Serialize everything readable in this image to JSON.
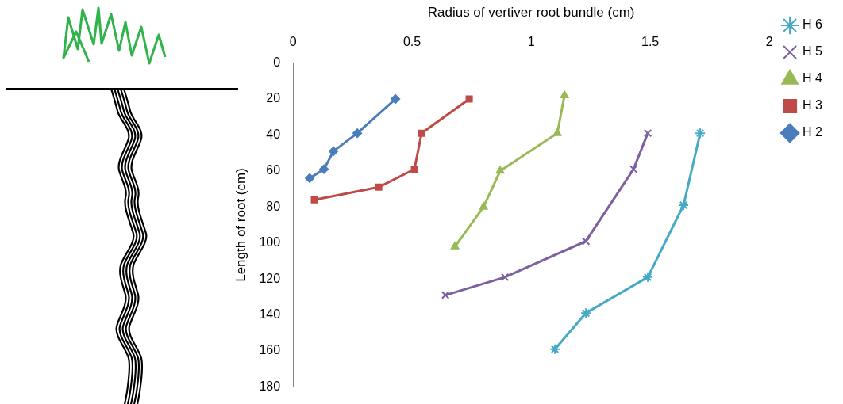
{
  "chart_data": {
    "type": "line",
    "x_label": "Radius of vertiver root bundle (cm)",
    "y_label": "Length of root (cm)",
    "xlim": [
      0,
      2
    ],
    "xticks": [
      0,
      0.5,
      1,
      1.5,
      2
    ],
    "ylim": [
      0,
      180
    ],
    "yticks": [
      0,
      20,
      40,
      60,
      80,
      100,
      120,
      140,
      160,
      180
    ],
    "log": false,
    "grid": false,
    "legend": "right",
    "series": [
      {
        "name": "H 6",
        "color": "#46aac5",
        "marker": "star",
        "line_style": "solid",
        "x": [
          1.71,
          1.64,
          1.49,
          1.23,
          1.1
        ],
        "values": [
          39,
          79,
          119,
          139,
          159
        ]
      },
      {
        "name": "H 5",
        "color": "#7d60a0",
        "marker": "x",
        "line_style": "solid",
        "x": [
          1.49,
          1.43,
          1.23,
          0.89,
          0.64
        ],
        "values": [
          39,
          59,
          99,
          119,
          129
        ]
      },
      {
        "name": "H 4",
        "color": "#98b954",
        "marker": "triangle",
        "line_style": "solid",
        "x": [
          1.14,
          1.11,
          0.87,
          0.8,
          0.68
        ],
        "values": [
          18,
          39,
          60,
          80,
          102
        ]
      },
      {
        "name": "H 3",
        "color": "#be4b48",
        "marker": "square",
        "line_style": "solid",
        "x": [
          0.74,
          0.54,
          0.51,
          0.36,
          0.09
        ],
        "values": [
          20,
          39,
          59,
          69,
          76
        ]
      },
      {
        "name": "H 2",
        "color": "#4a7ebb",
        "marker": "diamond",
        "line_style": "solid",
        "x": [
          0.43,
          0.27,
          0.17,
          0.13,
          0.07
        ],
        "values": [
          20,
          39,
          49,
          59,
          64
        ]
      }
    ]
  }
}
